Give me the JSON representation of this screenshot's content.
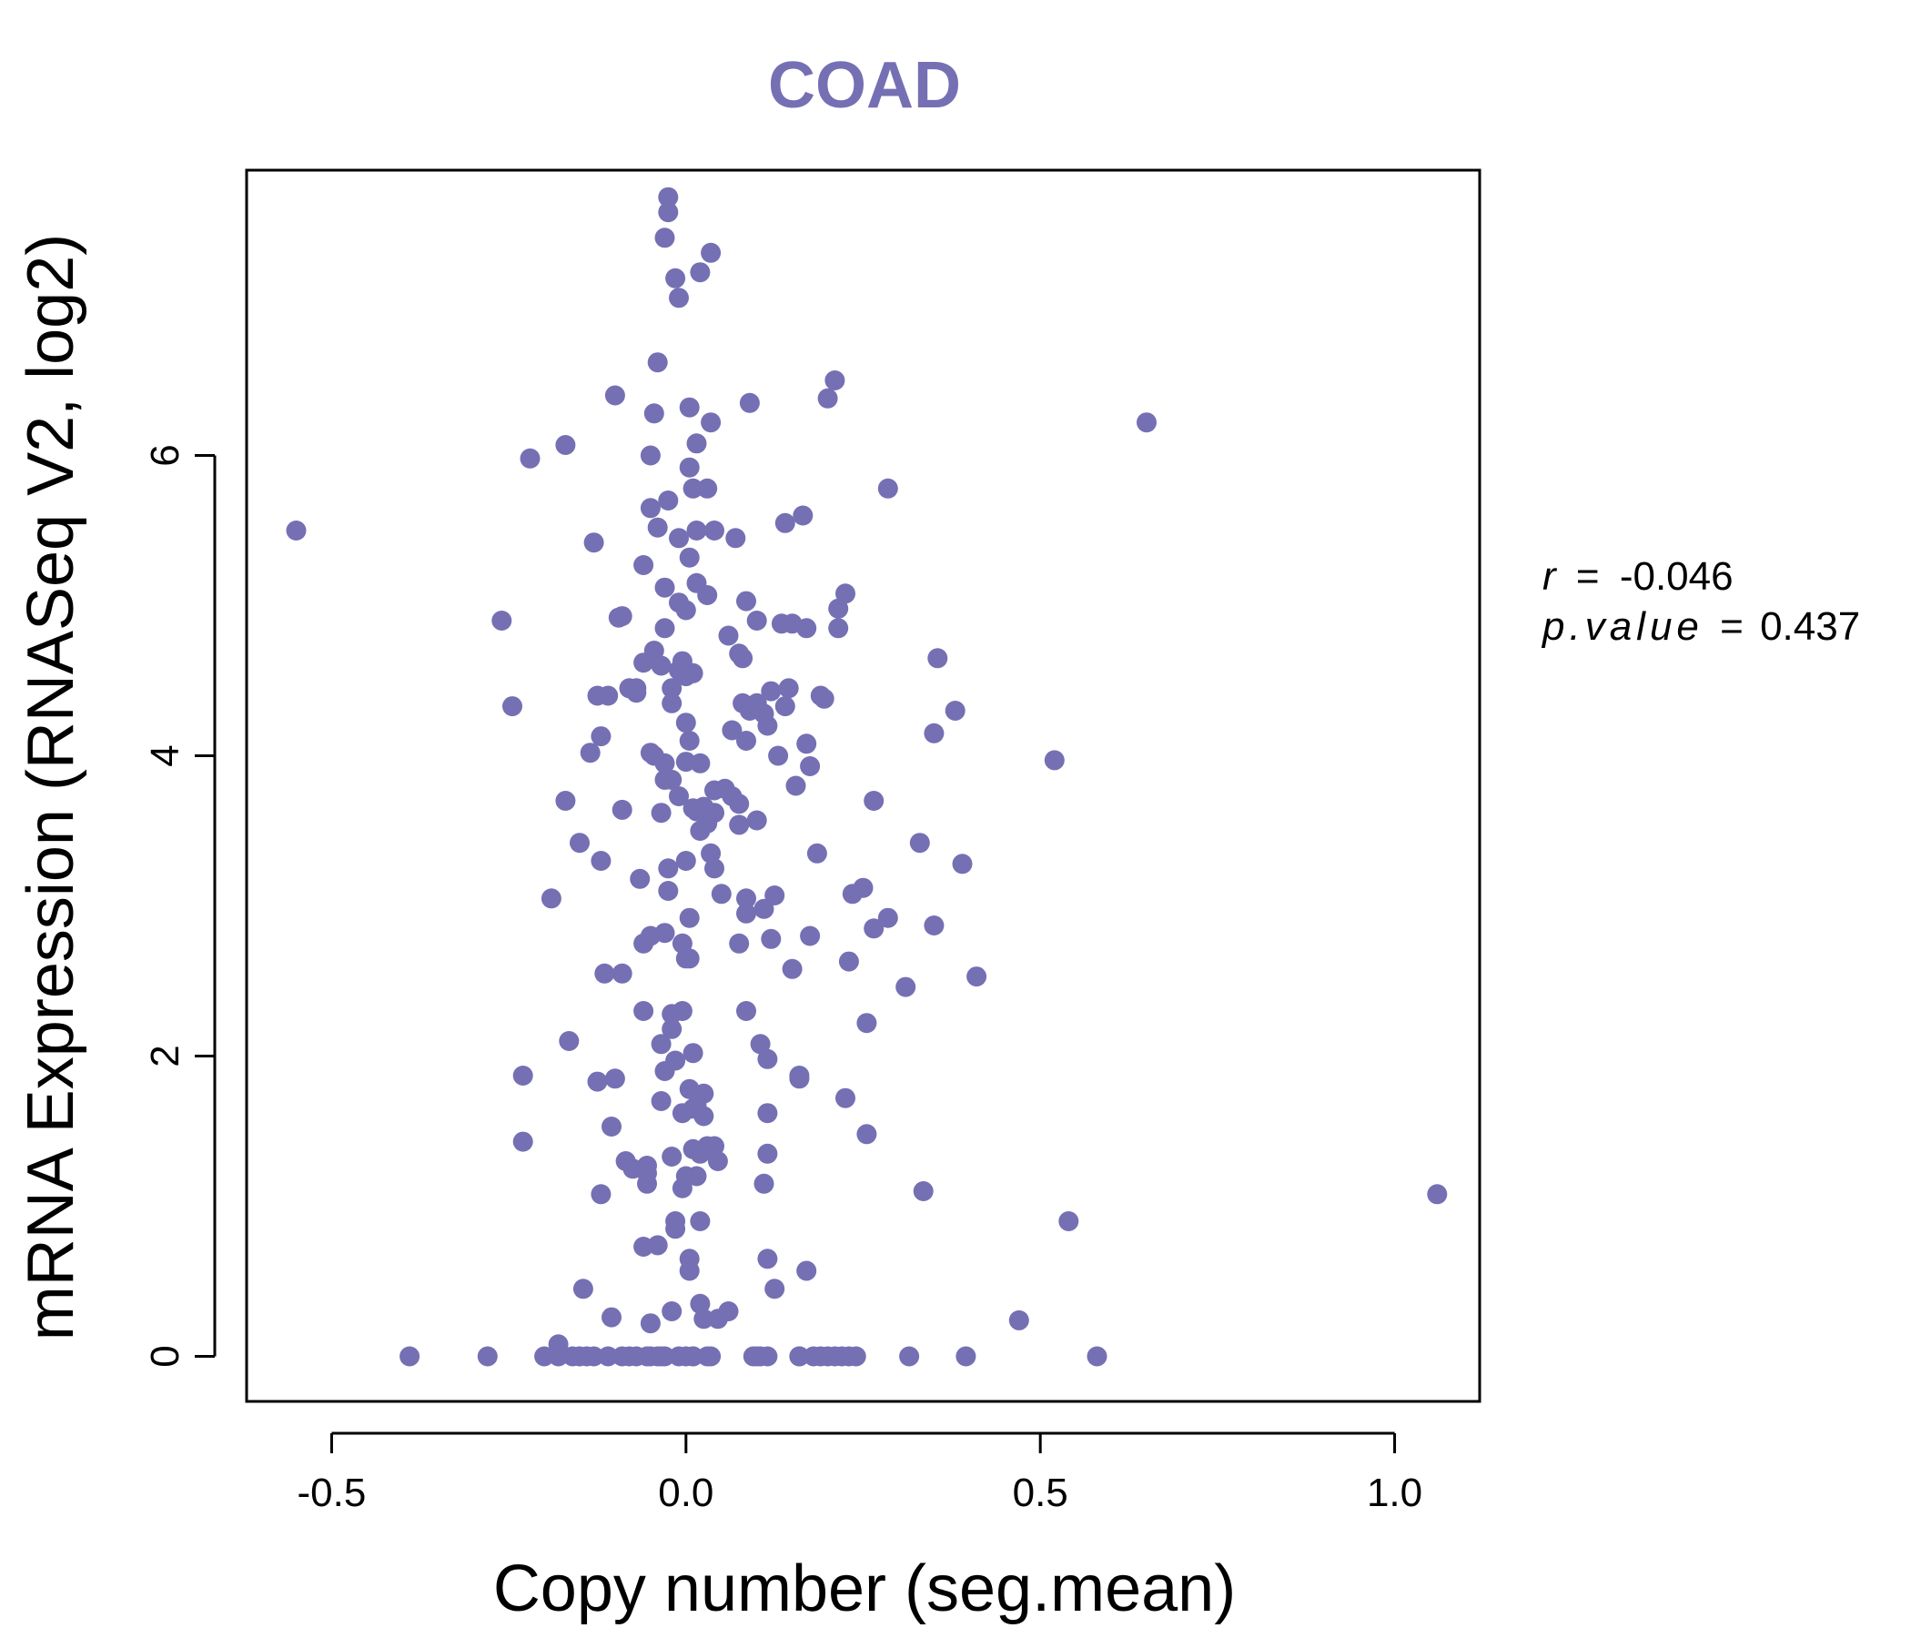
{
  "colors": {
    "accent": "#7570b3",
    "axis": "#000000"
  },
  "stats": {
    "r_label": "r",
    "r_value": "-0.046",
    "p_label": "p.value",
    "p_value": "0.437",
    "equals": "="
  },
  "chart_data": {
    "type": "scatter",
    "title": "COAD",
    "xlabel": "Copy number (seg.mean)",
    "ylabel": "mRNA Expression (RNASeq V2, log2)",
    "xlim": [
      -0.62,
      1.12
    ],
    "ylim": [
      -0.3,
      7.9
    ],
    "xticks": [
      -0.5,
      0.0,
      0.5,
      1.0
    ],
    "xtick_labels": [
      "-0.5",
      "0.0",
      "0.5",
      "1.0"
    ],
    "yticks": [
      0,
      2,
      4,
      6
    ],
    "ytick_labels": [
      "0",
      "2",
      "4",
      "6"
    ],
    "series": [
      {
        "name": "samples",
        "points": [
          [
            -0.55,
            5.5
          ],
          [
            0.65,
            6.22
          ],
          [
            1.06,
            1.08
          ],
          [
            0.54,
            0.9
          ],
          [
            0.52,
            3.97
          ],
          [
            0.47,
            0.24
          ],
          [
            0.58,
            0.0
          ],
          [
            -0.39,
            0.0
          ],
          [
            -0.28,
            0.0
          ],
          [
            -0.26,
            4.9
          ],
          [
            -0.245,
            4.33
          ],
          [
            -0.23,
            1.87
          ],
          [
            -0.23,
            1.43
          ],
          [
            -0.22,
            5.98
          ],
          [
            -0.19,
            3.05
          ],
          [
            -0.18,
            0.08
          ],
          [
            -0.18,
            0.0
          ],
          [
            -0.17,
            6.07
          ],
          [
            -0.17,
            3.7
          ],
          [
            -0.165,
            2.1
          ],
          [
            -0.15,
            0.0
          ],
          [
            -0.14,
            0.0
          ],
          [
            -0.15,
            3.42
          ],
          [
            -0.145,
            0.45
          ],
          [
            -0.135,
            4.02
          ],
          [
            -0.13,
            5.42
          ],
          [
            -0.13,
            0.0
          ],
          [
            -0.125,
            1.83
          ],
          [
            -0.125,
            4.4
          ],
          [
            -0.12,
            4.13
          ],
          [
            -0.12,
            3.3
          ],
          [
            -0.12,
            1.08
          ],
          [
            -0.115,
            2.55
          ],
          [
            -0.11,
            4.4
          ],
          [
            -0.11,
            0.0
          ],
          [
            -0.105,
            1.53
          ],
          [
            -0.105,
            0.26
          ],
          [
            -0.1,
            1.85
          ],
          [
            -0.1,
            6.4
          ],
          [
            -0.095,
            4.92
          ],
          [
            -0.09,
            4.93
          ],
          [
            -0.09,
            3.64
          ],
          [
            -0.09,
            2.55
          ],
          [
            -0.085,
            1.3
          ],
          [
            -0.08,
            0.0
          ],
          [
            -0.08,
            4.45
          ],
          [
            -0.075,
            1.25
          ],
          [
            -0.07,
            4.45
          ],
          [
            -0.07,
            4.42
          ],
          [
            -0.07,
            0.0
          ],
          [
            -0.065,
            3.18
          ],
          [
            -0.06,
            2.3
          ],
          [
            -0.06,
            0.73
          ],
          [
            -0.06,
            4.62
          ],
          [
            -0.06,
            5.27
          ],
          [
            -0.06,
            2.75
          ],
          [
            -0.055,
            1.15
          ],
          [
            -0.055,
            1.22
          ],
          [
            -0.055,
            1.27
          ],
          [
            -0.05,
            4.02
          ],
          [
            -0.05,
            0.22
          ],
          [
            -0.05,
            5.65
          ],
          [
            -0.05,
            6.0
          ],
          [
            -0.05,
            2.8
          ],
          [
            -0.05,
            0.0
          ],
          [
            -0.045,
            4.7
          ],
          [
            -0.045,
            4.0
          ],
          [
            -0.045,
            6.28
          ],
          [
            -0.04,
            0.74
          ],
          [
            -0.04,
            5.52
          ],
          [
            -0.04,
            0.0
          ],
          [
            -0.04,
            6.62
          ],
          [
            -0.035,
            4.6
          ],
          [
            -0.035,
            3.62
          ],
          [
            -0.035,
            2.08
          ],
          [
            -0.035,
            1.7
          ],
          [
            -0.035,
            0.0
          ],
          [
            -0.03,
            3.95
          ],
          [
            -0.03,
            3.84
          ],
          [
            -0.03,
            2.82
          ],
          [
            -0.03,
            1.9
          ],
          [
            -0.03,
            7.45
          ],
          [
            -0.03,
            5.12
          ],
          [
            -0.03,
            4.85
          ],
          [
            -0.025,
            7.72
          ],
          [
            -0.025,
            7.62
          ],
          [
            -0.025,
            5.7
          ],
          [
            -0.025,
            3.25
          ],
          [
            -0.025,
            3.1
          ],
          [
            -0.02,
            1.33
          ],
          [
            -0.02,
            0.3
          ],
          [
            -0.02,
            4.45
          ],
          [
            -0.02,
            4.35
          ],
          [
            -0.02,
            3.84
          ],
          [
            -0.02,
            2.28
          ],
          [
            -0.02,
            2.18
          ],
          [
            -0.015,
            7.18
          ],
          [
            -0.015,
            0.85
          ],
          [
            -0.015,
            0.9
          ],
          [
            -0.015,
            1.97
          ],
          [
            -0.01,
            5.02
          ],
          [
            -0.01,
            5.45
          ],
          [
            -0.01,
            4.57
          ],
          [
            -0.01,
            0.0
          ],
          [
            -0.01,
            7.05
          ],
          [
            -0.01,
            3.73
          ],
          [
            -0.005,
            2.3
          ],
          [
            -0.005,
            1.12
          ],
          [
            -0.005,
            1.62
          ],
          [
            -0.005,
            2.75
          ],
          [
            -0.005,
            4.63
          ],
          [
            0.0,
            4.22
          ],
          [
            0.0,
            3.3
          ],
          [
            0.0,
            4.53
          ],
          [
            0.0,
            2.65
          ],
          [
            0.0,
            0.0
          ],
          [
            0.0,
            1.2
          ],
          [
            0.0,
            4.97
          ],
          [
            0.0,
            3.96
          ],
          [
            0.005,
            5.92
          ],
          [
            0.005,
            4.1
          ],
          [
            0.005,
            2.92
          ],
          [
            0.005,
            1.78
          ],
          [
            0.005,
            0.65
          ],
          [
            0.005,
            0.57
          ],
          [
            0.005,
            2.65
          ],
          [
            0.005,
            6.32
          ],
          [
            0.005,
            5.32
          ],
          [
            0.01,
            5.78
          ],
          [
            0.01,
            3.65
          ],
          [
            0.01,
            1.65
          ],
          [
            0.01,
            2.02
          ],
          [
            0.01,
            0.0
          ],
          [
            0.01,
            1.38
          ],
          [
            0.01,
            4.55
          ],
          [
            0.015,
            3.63
          ],
          [
            0.015,
            1.2
          ],
          [
            0.015,
            1.67
          ],
          [
            0.015,
            6.08
          ],
          [
            0.015,
            5.5
          ],
          [
            0.015,
            5.15
          ],
          [
            0.02,
            7.22
          ],
          [
            0.02,
            3.95
          ],
          [
            0.02,
            1.35
          ],
          [
            0.02,
            0.9
          ],
          [
            0.02,
            0.35
          ],
          [
            0.02,
            3.5
          ],
          [
            0.025,
            3.66
          ],
          [
            0.025,
            1.75
          ],
          [
            0.025,
            1.6
          ],
          [
            0.025,
            0.25
          ],
          [
            0.03,
            5.07
          ],
          [
            0.03,
            5.78
          ],
          [
            0.03,
            3.55
          ],
          [
            0.03,
            1.4
          ],
          [
            0.035,
            7.35
          ],
          [
            0.035,
            6.22
          ],
          [
            0.035,
            3.35
          ],
          [
            0.035,
            0.0
          ],
          [
            0.04,
            5.5
          ],
          [
            0.04,
            3.25
          ],
          [
            0.04,
            3.77
          ],
          [
            0.04,
            1.4
          ],
          [
            0.04,
            3.62
          ],
          [
            0.045,
            1.3
          ],
          [
            0.045,
            0.25
          ],
          [
            0.05,
            3.08
          ],
          [
            0.055,
            3.78
          ],
          [
            0.06,
            0.3
          ],
          [
            0.06,
            4.8
          ],
          [
            0.065,
            4.17
          ],
          [
            0.065,
            3.73
          ],
          [
            0.07,
            5.45
          ],
          [
            0.075,
            3.68
          ],
          [
            0.075,
            4.68
          ],
          [
            0.075,
            3.54
          ],
          [
            0.075,
            2.75
          ],
          [
            0.08,
            4.65
          ],
          [
            0.08,
            4.35
          ],
          [
            0.085,
            4.1
          ],
          [
            0.085,
            3.05
          ],
          [
            0.085,
            2.3
          ],
          [
            0.085,
            2.95
          ],
          [
            0.085,
            5.03
          ],
          [
            0.09,
            6.35
          ],
          [
            0.09,
            4.3
          ],
          [
            0.095,
            0.0
          ],
          [
            0.1,
            3.57
          ],
          [
            0.1,
            4.9
          ],
          [
            0.1,
            4.35
          ],
          [
            0.105,
            2.08
          ],
          [
            0.105,
            0.0
          ],
          [
            0.11,
            4.28
          ],
          [
            0.11,
            1.15
          ],
          [
            0.11,
            2.98
          ],
          [
            0.115,
            4.2
          ],
          [
            0.115,
            1.98
          ],
          [
            0.115,
            1.62
          ],
          [
            0.115,
            0.65
          ],
          [
            0.115,
            1.35
          ],
          [
            0.115,
            0.0
          ],
          [
            0.12,
            2.78
          ],
          [
            0.12,
            4.43
          ],
          [
            0.125,
            0.45
          ],
          [
            0.125,
            3.07
          ],
          [
            0.13,
            4.0
          ],
          [
            0.135,
            4.88
          ],
          [
            0.14,
            5.55
          ],
          [
            0.14,
            4.33
          ],
          [
            0.145,
            4.45
          ],
          [
            0.15,
            4.88
          ],
          [
            0.15,
            2.58
          ],
          [
            0.155,
            3.8
          ],
          [
            0.16,
            0.0
          ],
          [
            0.16,
            1.85
          ],
          [
            0.16,
            1.87
          ],
          [
            0.165,
            5.6
          ],
          [
            0.17,
            4.08
          ],
          [
            0.17,
            4.85
          ],
          [
            0.17,
            0.57
          ],
          [
            0.175,
            3.93
          ],
          [
            0.175,
            2.8
          ],
          [
            0.18,
            0.0
          ],
          [
            0.185,
            3.35
          ],
          [
            0.19,
            4.4
          ],
          [
            0.19,
            0.0
          ],
          [
            0.195,
            4.38
          ],
          [
            0.2,
            6.38
          ],
          [
            0.21,
            6.5
          ],
          [
            0.21,
            0.0
          ],
          [
            0.215,
            4.85
          ],
          [
            0.215,
            4.98
          ],
          [
            0.225,
            5.08
          ],
          [
            0.225,
            1.72
          ],
          [
            0.23,
            0.0
          ],
          [
            0.23,
            2.63
          ],
          [
            0.235,
            3.08
          ],
          [
            0.24,
            0.0
          ],
          [
            0.25,
            3.12
          ],
          [
            0.255,
            2.22
          ],
          [
            0.255,
            1.48
          ],
          [
            0.265,
            2.85
          ],
          [
            0.265,
            3.7
          ],
          [
            0.285,
            2.92
          ],
          [
            0.285,
            5.78
          ],
          [
            0.31,
            2.46
          ],
          [
            0.315,
            0.0
          ],
          [
            0.33,
            3.42
          ],
          [
            0.335,
            1.1
          ],
          [
            0.35,
            2.87
          ],
          [
            0.35,
            4.15
          ],
          [
            0.355,
            4.65
          ],
          [
            0.38,
            4.3
          ],
          [
            0.39,
            3.28
          ],
          [
            0.395,
            0.0
          ],
          [
            0.41,
            2.53
          ],
          [
            -0.2,
            0.0
          ],
          [
            -0.16,
            0.0
          ],
          [
            -0.09,
            0.0
          ],
          [
            -0.055,
            0.0
          ],
          [
            -0.03,
            0.0
          ],
          [
            0.01,
            0.0
          ],
          [
            0.03,
            0.0
          ],
          [
            0.1,
            0.0
          ],
          [
            0.16,
            0.0
          ],
          [
            0.2,
            0.0
          ],
          [
            0.22,
            0.0
          ]
        ]
      }
    ]
  }
}
